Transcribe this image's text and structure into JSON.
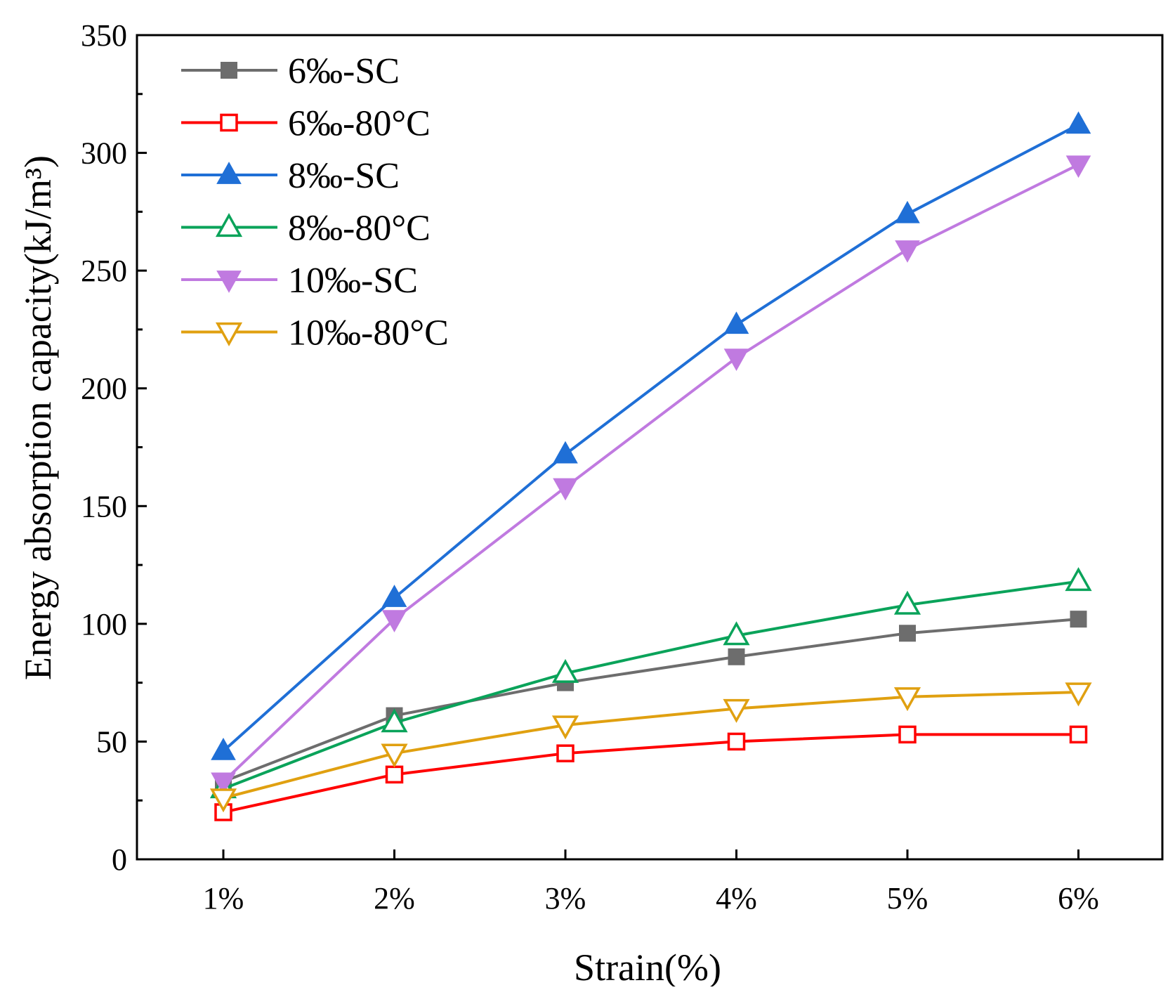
{
  "chart_data": {
    "type": "line",
    "title": "",
    "xlabel": "Strain(%)",
    "ylabel": "Energy absorption capacity(kJ/m³)",
    "categories": [
      "1%",
      "2%",
      "3%",
      "4%",
      "5%",
      "6%"
    ],
    "ylim": [
      0,
      350
    ],
    "yticks": [
      0,
      50,
      100,
      150,
      200,
      250,
      300,
      350
    ],
    "ytick_labels": [
      "0",
      "50",
      "100",
      "150",
      "200",
      "250",
      "300",
      "350"
    ],
    "grid": false,
    "legend_position": "top-left",
    "series": [
      {
        "name": "6‰-SC",
        "color": "#6d6d6d",
        "marker": "square",
        "filled": true,
        "values": [
          33,
          61,
          75,
          86,
          96,
          102
        ]
      },
      {
        "name": "6‰-80°C",
        "color": "#ff0000",
        "marker": "square",
        "filled": false,
        "values": [
          20,
          36,
          45,
          50,
          53,
          53
        ]
      },
      {
        "name": "8‰-SC",
        "color": "#1f6fd6",
        "marker": "triangle-up",
        "filled": true,
        "values": [
          46,
          111,
          172,
          227,
          274,
          312
        ]
      },
      {
        "name": "8‰-80°C",
        "color": "#0aa35a",
        "marker": "triangle-up",
        "filled": false,
        "values": [
          30,
          58,
          79,
          95,
          108,
          118
        ]
      },
      {
        "name": "10‰-SC",
        "color": "#c07ae0",
        "marker": "triangle-down",
        "filled": true,
        "values": [
          33,
          102,
          158,
          213,
          259,
          295
        ]
      },
      {
        "name": "10‰-80°C",
        "color": "#e0a010",
        "marker": "triangle-down",
        "filled": false,
        "values": [
          26,
          45,
          57,
          64,
          69,
          71
        ]
      }
    ]
  }
}
